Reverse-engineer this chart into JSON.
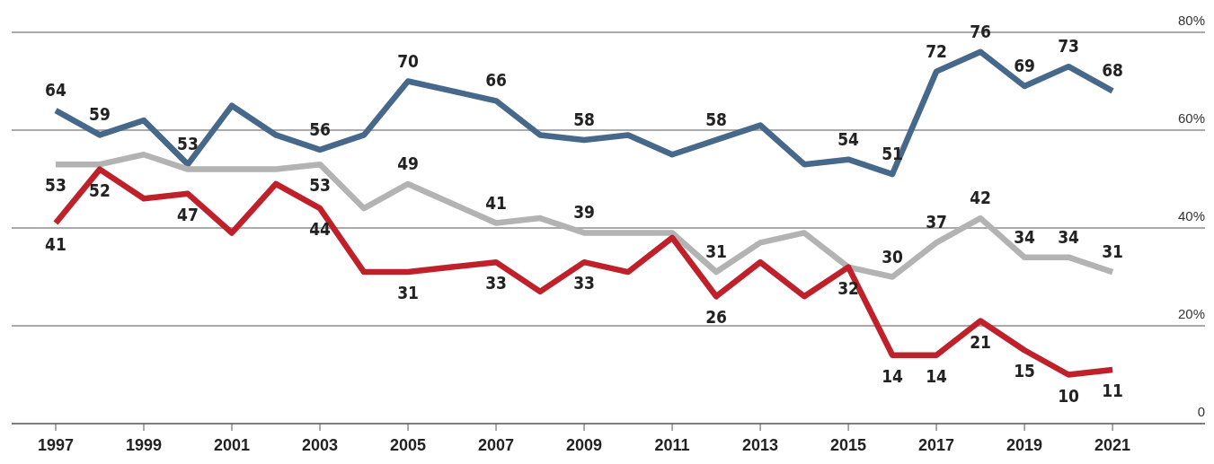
{
  "chart_data": {
    "type": "line",
    "x": [
      1997,
      1998,
      1999,
      2000,
      2001,
      2002,
      2003,
      2004,
      2005,
      2006,
      2007,
      2008,
      2009,
      2010,
      2011,
      2012,
      2013,
      2014,
      2015,
      2016,
      2017,
      2018,
      2019,
      2020,
      2021
    ],
    "series": [
      {
        "color": "#46688a",
        "values": [
          64,
          59,
          62,
          53,
          65,
          59,
          56,
          59,
          70,
          68,
          66,
          59,
          58,
          59,
          55,
          58,
          61,
          53,
          54,
          51,
          72,
          76,
          69,
          73,
          68
        ],
        "value_labels": [
          "64",
          "59",
          null,
          "53",
          null,
          null,
          "56",
          null,
          "70",
          null,
          "66",
          null,
          "58",
          null,
          null,
          "58",
          null,
          null,
          "54",
          "51",
          "72",
          "76",
          "69",
          "73",
          "68"
        ]
      },
      {
        "color": "#b3b3b3",
        "values": [
          53,
          53,
          55,
          52,
          52,
          52,
          53,
          44,
          49,
          45,
          41,
          42,
          39,
          39,
          39,
          31,
          37,
          39,
          32,
          30,
          37,
          42,
          34,
          34,
          31
        ],
        "value_labels": [
          "53",
          null,
          null,
          null,
          null,
          null,
          "53",
          null,
          "49",
          null,
          "41",
          null,
          "39",
          null,
          null,
          "31",
          null,
          null,
          "32",
          "30",
          "37",
          "42",
          "34",
          "34",
          "31"
        ]
      },
      {
        "color": "#c0202a",
        "values": [
          41,
          52,
          46,
          47,
          39,
          49,
          44,
          31,
          31,
          32,
          33,
          27,
          33,
          31,
          38,
          26,
          33,
          26,
          32,
          14,
          14,
          21,
          15,
          10,
          11
        ],
        "value_labels": [
          "41",
          "52",
          null,
          "47",
          null,
          null,
          "44",
          null,
          "31",
          null,
          "33",
          null,
          "33",
          null,
          null,
          "26",
          null,
          null,
          null,
          "14",
          "14",
          "21",
          "15",
          "10",
          "11"
        ]
      }
    ],
    "xlim": [
      1996,
      2023.1
    ],
    "xticks": [
      1997,
      1999,
      2001,
      2003,
      2005,
      2007,
      2009,
      2011,
      2013,
      2015,
      2017,
      2019,
      2021
    ],
    "ylim": [
      0,
      80
    ],
    "yticks": [
      0,
      {
        "value": 20,
        "label": "20%"
      },
      {
        "value": 40,
        "label": "40%"
      },
      {
        "value": 60,
        "label": "60%"
      },
      {
        "value": 80,
        "label": "80%"
      }
    ],
    "grid": "y",
    "line_style": "solid",
    "marker": "none"
  }
}
